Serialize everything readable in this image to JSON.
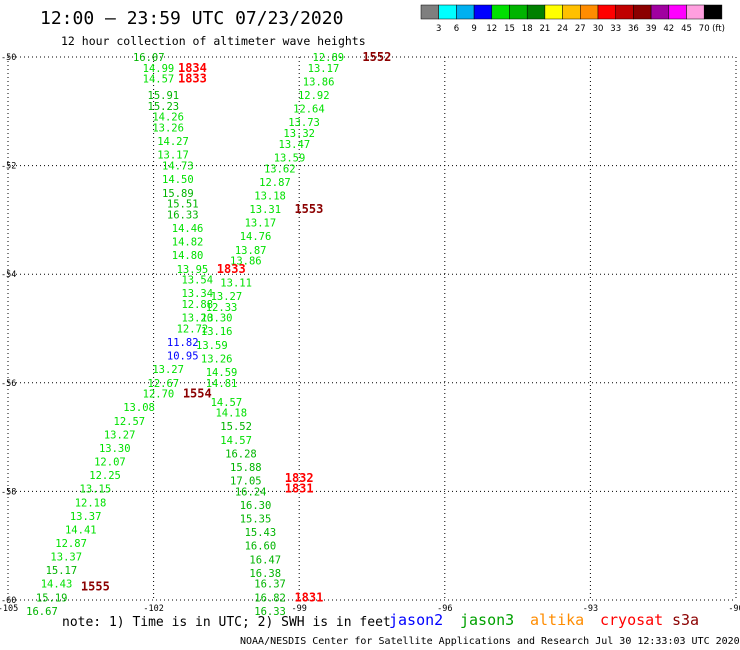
{
  "title": "12:00 – 23:59 UTC 07/23/2020",
  "subtitle": "12 hour collection of altimeter wave heights",
  "note": "note: 1) Time is in UTC; 2) SWH is in feet",
  "credit": "NOAA/NESDIS Center for Satellite Applications and Research   Jul 30 12:33:03 UTC 2020",
  "colorbar": {
    "unit": "(ft)",
    "labels": [
      "3",
      "6",
      "9",
      "12",
      "15",
      "18",
      "21",
      "24",
      "27",
      "30",
      "33",
      "36",
      "39",
      "42",
      "45",
      "70"
    ],
    "colors": [
      "#7f7f7f",
      "#00ffff",
      "#00b0f0",
      "#0000ff",
      "#00e000",
      "#00b400",
      "#008000",
      "#ffff00",
      "#ffc000",
      "#ff8c00",
      "#ff0000",
      "#c00000",
      "#8b0000",
      "#a000a0",
      "#ff00ff",
      "#ff9fdf",
      "#000000"
    ]
  },
  "satellites": [
    {
      "name": "jason2",
      "color": "#0000ff"
    },
    {
      "name": "jason3",
      "color": "#00a000"
    },
    {
      "name": "altika",
      "color": "#ff8c00"
    },
    {
      "name": "cryosat",
      "color": "#ff0000"
    },
    {
      "name": "s3a",
      "color": "#8b0000"
    }
  ],
  "chart_data": {
    "type": "scatter",
    "title": "12:00 – 23:59 UTC 07/23/2020",
    "subtitle": "12 hour collection of altimeter wave heights",
    "xlim": [
      -105,
      -90
    ],
    "ylim": [
      -60,
      -50
    ],
    "x_ticks": [
      "-105",
      "-102",
      "-99",
      "-96",
      "-93",
      "-90"
    ],
    "y_ticks": [
      "-50",
      "-52",
      "-54",
      "-56",
      "-58",
      "-60"
    ],
    "grid": true,
    "time_labels": [
      {
        "text": "1552",
        "lon": -97.4,
        "lat": -50.0,
        "color": "#8b0000"
      },
      {
        "text": "1834",
        "lon": -101.2,
        "lat": -50.2,
        "color": "#ff0000"
      },
      {
        "text": "1833",
        "lon": -101.2,
        "lat": -50.4,
        "color": "#ff0000"
      },
      {
        "text": "1553",
        "lon": -98.8,
        "lat": -52.8,
        "color": "#8b0000"
      },
      {
        "text": "1833",
        "lon": -100.4,
        "lat": -53.9,
        "color": "#ff0000"
      },
      {
        "text": "1554",
        "lon": -101.1,
        "lat": -56.2,
        "color": "#8b0000"
      },
      {
        "text": "1832",
        "lon": -99.0,
        "lat": -57.75,
        "color": "#ff0000"
      },
      {
        "text": "1831",
        "lon": -99.0,
        "lat": -57.95,
        "color": "#ff0000"
      },
      {
        "text": "1555",
        "lon": -103.2,
        "lat": -59.75,
        "color": "#8b0000"
      },
      {
        "text": "1831",
        "lon": -98.8,
        "lat": -59.95,
        "color": "#ff0000"
      }
    ],
    "series": [
      {
        "name": "track-1831-1834",
        "values": [
          {
            "lon": -102.1,
            "lat": -50.0,
            "swh": "16.07",
            "color": "#00b400"
          },
          {
            "lon": -101.9,
            "lat": -50.2,
            "swh": "14.99",
            "color": "#00e000"
          },
          {
            "lon": -101.9,
            "lat": -50.4,
            "swh": "14.57",
            "color": "#00e000"
          },
          {
            "lon": -101.8,
            "lat": -50.7,
            "swh": "15.91",
            "color": "#00b400"
          },
          {
            "lon": -101.8,
            "lat": -50.9,
            "swh": "15.23",
            "color": "#00b400"
          },
          {
            "lon": -101.7,
            "lat": -51.1,
            "swh": "14.26",
            "color": "#00e000"
          },
          {
            "lon": -101.7,
            "lat": -51.3,
            "swh": "13.26",
            "color": "#00e000"
          },
          {
            "lon": -101.6,
            "lat": -51.55,
            "swh": "14.27",
            "color": "#00e000"
          },
          {
            "lon": -101.6,
            "lat": -51.8,
            "swh": "13.17",
            "color": "#00e000"
          },
          {
            "lon": -101.5,
            "lat": -52.0,
            "swh": "14.73",
            "color": "#00e000"
          },
          {
            "lon": -101.5,
            "lat": -52.25,
            "swh": "14.50",
            "color": "#00e000"
          },
          {
            "lon": -101.5,
            "lat": -52.5,
            "swh": "15.89",
            "color": "#00b400"
          },
          {
            "lon": -101.4,
            "lat": -52.7,
            "swh": "15.51",
            "color": "#00b400"
          },
          {
            "lon": -101.4,
            "lat": -52.9,
            "swh": "16.33",
            "color": "#00b400"
          },
          {
            "lon": -101.3,
            "lat": -53.15,
            "swh": "14.46",
            "color": "#00e000"
          },
          {
            "lon": -101.3,
            "lat": -53.4,
            "swh": "14.82",
            "color": "#00e000"
          },
          {
            "lon": -101.3,
            "lat": -53.65,
            "swh": "14.80",
            "color": "#00e000"
          },
          {
            "lon": -101.2,
            "lat": -53.9,
            "swh": "13.95",
            "color": "#00e000"
          },
          {
            "lon": -101.1,
            "lat": -54.1,
            "swh": "13.54",
            "color": "#00e000"
          },
          {
            "lon": -101.1,
            "lat": -54.35,
            "swh": "13.34",
            "color": "#00e000"
          },
          {
            "lon": -101.1,
            "lat": -54.55,
            "swh": "12.88",
            "color": "#00e000"
          },
          {
            "lon": -101.1,
            "lat": -54.8,
            "swh": "13.20",
            "color": "#00e000"
          },
          {
            "lon": -101.2,
            "lat": -55.0,
            "swh": "12.72",
            "color": "#00e000"
          },
          {
            "lon": -101.4,
            "lat": -55.25,
            "swh": "11.82",
            "color": "#0000ff"
          },
          {
            "lon": -101.4,
            "lat": -55.5,
            "swh": "10.95",
            "color": "#0000ff"
          },
          {
            "lon": -101.7,
            "lat": -55.75,
            "swh": "13.27",
            "color": "#00e000"
          },
          {
            "lon": -101.8,
            "lat": -56.0,
            "swh": "12.67",
            "color": "#00e000"
          },
          {
            "lon": -101.9,
            "lat": -56.2,
            "swh": "12.70",
            "color": "#00e000"
          },
          {
            "lon": -102.3,
            "lat": -56.45,
            "swh": "13.08",
            "color": "#00e000"
          },
          {
            "lon": -102.5,
            "lat": -56.7,
            "swh": "12.57",
            "color": "#00e000"
          },
          {
            "lon": -102.7,
            "lat": -56.95,
            "swh": "13.27",
            "color": "#00e000"
          },
          {
            "lon": -102.8,
            "lat": -57.2,
            "swh": "13.30",
            "color": "#00e000"
          },
          {
            "lon": -102.9,
            "lat": -57.45,
            "swh": "12.07",
            "color": "#00e000"
          },
          {
            "lon": -103.0,
            "lat": -57.7,
            "swh": "12.25",
            "color": "#00e000"
          },
          {
            "lon": -103.2,
            "lat": -57.95,
            "swh": "13.15",
            "color": "#00e000"
          },
          {
            "lon": -103.3,
            "lat": -58.2,
            "swh": "12.18",
            "color": "#00e000"
          },
          {
            "lon": -103.4,
            "lat": -58.45,
            "swh": "13.37",
            "color": "#00e000"
          },
          {
            "lon": -103.5,
            "lat": -58.7,
            "swh": "14.41",
            "color": "#00e000"
          },
          {
            "lon": -103.7,
            "lat": -58.95,
            "swh": "12.87",
            "color": "#00e000"
          },
          {
            "lon": -103.8,
            "lat": -59.2,
            "swh": "13.37",
            "color": "#00e000"
          },
          {
            "lon": -103.9,
            "lat": -59.45,
            "swh": "15.17",
            "color": "#00b400"
          },
          {
            "lon": -104.0,
            "lat": -59.7,
            "swh": "14.43",
            "color": "#00e000"
          },
          {
            "lon": -104.1,
            "lat": -59.95,
            "swh": "15.19",
            "color": "#00b400"
          },
          {
            "lon": -104.3,
            "lat": -60.2,
            "swh": "16.67",
            "color": "#00b400"
          }
        ]
      },
      {
        "name": "track-1552-1555",
        "values": [
          {
            "lon": -98.4,
            "lat": -50.0,
            "swh": "12.89",
            "color": "#00e000"
          },
          {
            "lon": -98.5,
            "lat": -50.2,
            "swh": "13.17",
            "color": "#00e000"
          },
          {
            "lon": -98.6,
            "lat": -50.45,
            "swh": "13.86",
            "color": "#00e000"
          },
          {
            "lon": -98.7,
            "lat": -50.7,
            "swh": "12.92",
            "color": "#00e000"
          },
          {
            "lon": -98.8,
            "lat": -50.95,
            "swh": "12.64",
            "color": "#00e000"
          },
          {
            "lon": -98.9,
            "lat": -51.2,
            "swh": "13.73",
            "color": "#00e000"
          },
          {
            "lon": -99.0,
            "lat": -51.4,
            "swh": "13.32",
            "color": "#00e000"
          },
          {
            "lon": -99.1,
            "lat": -51.6,
            "swh": "13.47",
            "color": "#00e000"
          },
          {
            "lon": -99.2,
            "lat": -51.85,
            "swh": "13.59",
            "color": "#00e000"
          },
          {
            "lon": -99.4,
            "lat": -52.05,
            "swh": "13.62",
            "color": "#00e000"
          },
          {
            "lon": -99.5,
            "lat": -52.3,
            "swh": "12.87",
            "color": "#00e000"
          },
          {
            "lon": -99.6,
            "lat": -52.55,
            "swh": "13.18",
            "color": "#00e000"
          },
          {
            "lon": -99.7,
            "lat": -52.8,
            "swh": "13.31",
            "color": "#00e000"
          },
          {
            "lon": -99.8,
            "lat": -53.05,
            "swh": "13.17",
            "color": "#00e000"
          },
          {
            "lon": -99.9,
            "lat": -53.3,
            "swh": "14.76",
            "color": "#00e000"
          },
          {
            "lon": -100.0,
            "lat": -53.55,
            "swh": "13.87",
            "color": "#00e000"
          },
          {
            "lon": -100.1,
            "lat": -53.75,
            "swh": "13.86",
            "color": "#00e000"
          },
          {
            "lon": -100.3,
            "lat": -54.15,
            "swh": "13.11",
            "color": "#00e000"
          },
          {
            "lon": -100.5,
            "lat": -54.4,
            "swh": "13.27",
            "color": "#00e000"
          },
          {
            "lon": -100.6,
            "lat": -54.6,
            "swh": "12.33",
            "color": "#00e000"
          },
          {
            "lon": -100.7,
            "lat": -54.8,
            "swh": "13.30",
            "color": "#00e000"
          },
          {
            "lon": -100.7,
            "lat": -55.05,
            "swh": "13.16",
            "color": "#00e000"
          },
          {
            "lon": -100.8,
            "lat": -55.3,
            "swh": "13.59",
            "color": "#00e000"
          },
          {
            "lon": -100.7,
            "lat": -55.55,
            "swh": "13.26",
            "color": "#00e000"
          },
          {
            "lon": -100.6,
            "lat": -55.8,
            "swh": "14.59",
            "color": "#00e000"
          },
          {
            "lon": -100.6,
            "lat": -56.0,
            "swh": "14.81",
            "color": "#00e000"
          },
          {
            "lon": -100.5,
            "lat": -56.35,
            "swh": "14.57",
            "color": "#00e000"
          },
          {
            "lon": -100.4,
            "lat": -56.55,
            "swh": "14.18",
            "color": "#00e000"
          },
          {
            "lon": -100.3,
            "lat": -56.8,
            "swh": "15.52",
            "color": "#00b400"
          },
          {
            "lon": -100.3,
            "lat": -57.05,
            "swh": "14.57",
            "color": "#00e000"
          },
          {
            "lon": -100.2,
            "lat": -57.3,
            "swh": "16.28",
            "color": "#00b400"
          },
          {
            "lon": -100.1,
            "lat": -57.55,
            "swh": "15.88",
            "color": "#00b400"
          },
          {
            "lon": -100.1,
            "lat": -57.8,
            "swh": "17.05",
            "color": "#00b400"
          },
          {
            "lon": -100.0,
            "lat": -58.0,
            "swh": "16.24",
            "color": "#00b400"
          },
          {
            "lon": -99.9,
            "lat": -58.25,
            "swh": "16.30",
            "color": "#00b400"
          },
          {
            "lon": -99.9,
            "lat": -58.5,
            "swh": "15.35",
            "color": "#00b400"
          },
          {
            "lon": -99.8,
            "lat": -58.75,
            "swh": "15.43",
            "color": "#00b400"
          },
          {
            "lon": -99.8,
            "lat": -59.0,
            "swh": "16.60",
            "color": "#00b400"
          },
          {
            "lon": -99.7,
            "lat": -59.25,
            "swh": "16.47",
            "color": "#00b400"
          },
          {
            "lon": -99.7,
            "lat": -59.5,
            "swh": "16.38",
            "color": "#00b400"
          },
          {
            "lon": -99.6,
            "lat": -59.7,
            "swh": "16.37",
            "color": "#00b400"
          },
          {
            "lon": -99.6,
            "lat": -59.95,
            "swh": "16.82",
            "color": "#00b400"
          },
          {
            "lon": -99.6,
            "lat": -60.2,
            "swh": "16.33",
            "color": "#00b400"
          }
        ]
      }
    ]
  }
}
